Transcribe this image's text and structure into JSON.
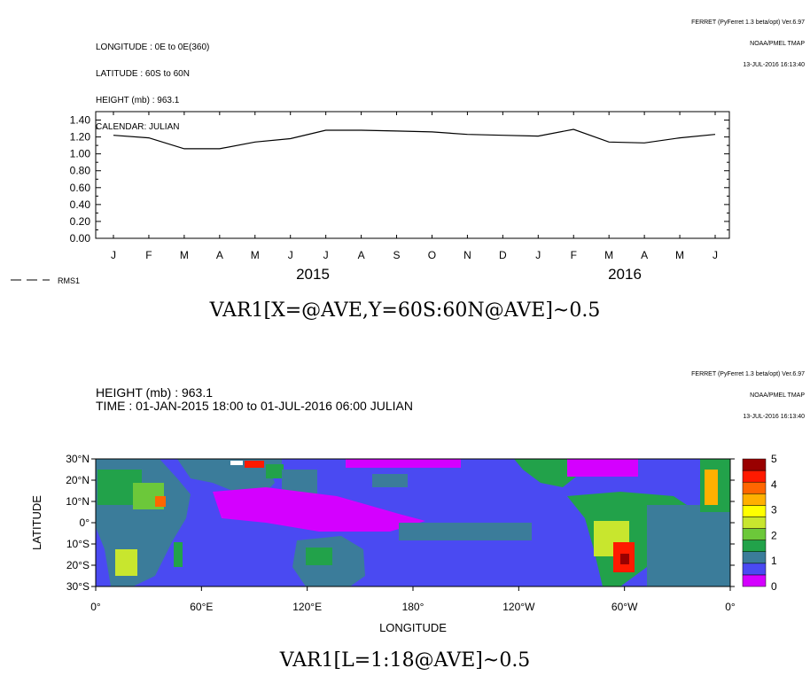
{
  "top": {
    "header_left": [
      "LONGITUDE : 0E to 0E(360)",
      "LATITUDE : 60S to 60N",
      "HEIGHT (mb) : 963.1",
      "CALENDAR: JULIAN"
    ],
    "header_right": [
      "FERRET (PyFerret 1.3 beta/opt) Ver.6.97",
      "NOAA/PMEL TMAP",
      "13-JUL-2016 16:13:40"
    ],
    "title": "VAR1[X=@AVE,Y=60S:60N@AVE]~0.5",
    "legend_label": "RMS1",
    "legend_dash": "— — -"
  },
  "bottom": {
    "header_right": [
      "FERRET (PyFerret 1.3 beta/opt) Ver.6.97",
      "NOAA/PMEL TMAP",
      "13-JUL-2016 16:13:40"
    ],
    "info": [
      "HEIGHT (mb) : 963.1",
      "TIME : 01-JAN-2015 18:00 to 01-JUL-2016 06:00 JULIAN"
    ],
    "title": "VAR1[L=1:18@AVE]~0.5"
  },
  "chart_data": [
    {
      "type": "line",
      "x": [
        "J",
        "F",
        "M",
        "A",
        "M",
        "J",
        "J",
        "A",
        "S",
        "O",
        "N",
        "D",
        "J",
        "F",
        "M",
        "A",
        "M",
        "J"
      ],
      "year_labels": [
        "2015",
        "2016"
      ],
      "series": [
        {
          "name": "RMS1",
          "values": [
            1.22,
            1.19,
            1.06,
            1.06,
            1.14,
            1.18,
            1.28,
            1.28,
            1.27,
            1.26,
            1.23,
            1.22,
            1.21,
            1.29,
            1.14,
            1.13,
            1.19,
            1.23
          ]
        }
      ],
      "y_ticks": [
        "0.00",
        "0.20",
        "0.40",
        "0.60",
        "0.80",
        "1.00",
        "1.20",
        "1.40"
      ],
      "ylim": [
        0,
        1.5
      ],
      "grid": false,
      "legend": "bottom-left"
    },
    {
      "type": "heatmap",
      "xlabel": "LONGITUDE",
      "ylabel": "LATITUDE",
      "x_ticks": [
        "0°",
        "60°E",
        "120°E",
        "180°",
        "120°W",
        "60°W",
        "0°"
      ],
      "y_ticks": [
        "30°N",
        "20°N",
        "10°N",
        "0°",
        "10°S",
        "20°S",
        "30°S"
      ],
      "xlim": [
        0,
        360
      ],
      "ylim": [
        -30,
        30
      ],
      "colorbar": {
        "labels": [
          "0",
          "1",
          "2",
          "3",
          "4",
          "5"
        ],
        "colors": [
          "#d400ff",
          "#4a4af2",
          "#3b7c9a",
          "#22a24a",
          "#6cc83a",
          "#c8e62e",
          "#ffff00",
          "#ffb000",
          "#ff6600",
          "#ff1a00",
          "#990000"
        ]
      }
    }
  ]
}
